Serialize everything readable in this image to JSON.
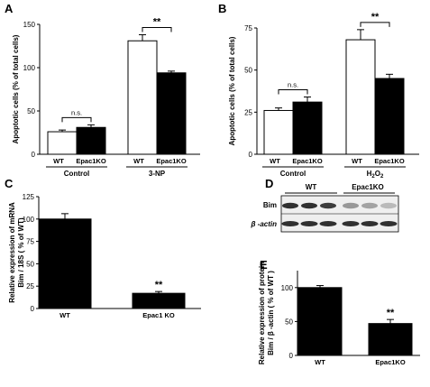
{
  "chart_data": [
    {
      "panel": "A",
      "type": "bar",
      "ylabel": "Apoptotic cells (% of total cells)",
      "ylim": [
        0,
        150
      ],
      "yticks": [
        0,
        50,
        100,
        150
      ],
      "categories": [
        "WT",
        "Epac1KO",
        "WT",
        "Epac1KO"
      ],
      "groups": [
        "Control",
        "3-NP"
      ],
      "values": [
        26,
        31,
        131,
        94
      ],
      "errors": [
        2,
        3,
        7,
        2
      ],
      "fills": [
        "#ffffff",
        "#000000",
        "#ffffff",
        "#000000"
      ],
      "brackets": [
        {
          "from": 0,
          "to": 1,
          "label": "n.s."
        },
        {
          "from": 2,
          "to": 3,
          "label": "**"
        }
      ]
    },
    {
      "panel": "B",
      "type": "bar",
      "ylabel": "Apoptotic cells (% of total cells)",
      "ylim": [
        0,
        75
      ],
      "yticks": [
        0,
        25,
        50,
        75
      ],
      "categories": [
        "WT",
        "Epac1KO",
        "WT",
        "Epac1KO"
      ],
      "groups": [
        "Control",
        "H2O2"
      ],
      "values": [
        26,
        31,
        68,
        45
      ],
      "errors": [
        1.5,
        3,
        6,
        2.5
      ],
      "fills": [
        "#ffffff",
        "#000000",
        "#ffffff",
        "#000000"
      ],
      "brackets": [
        {
          "from": 0,
          "to": 1,
          "label": "n.s."
        },
        {
          "from": 2,
          "to": 3,
          "label": "**"
        }
      ]
    },
    {
      "panel": "C",
      "type": "bar",
      "ylabel": "Relative expression of mRNA Bim / 18S ( % of WT)",
      "ylim": [
        0,
        125
      ],
      "yticks": [
        0,
        25,
        50,
        75,
        100,
        125
      ],
      "categories": [
        "WT",
        "Epac1 KO"
      ],
      "values": [
        100,
        17
      ],
      "errors": [
        6,
        2
      ],
      "fills": [
        "#000000",
        "#000000"
      ],
      "annotations": [
        {
          "index": 1,
          "label": "**"
        }
      ]
    },
    {
      "panel": "E",
      "type": "bar",
      "ylabel": "Relative expression of protein Bim / β -actin ( % of WT )",
      "ylim": [
        0,
        125
      ],
      "yticks": [
        0,
        50,
        100
      ],
      "categories": [
        "WT",
        "Epac1KO"
      ],
      "values": [
        100,
        47
      ],
      "errors": [
        3,
        6
      ],
      "fills": [
        "#000000",
        "#000000"
      ],
      "annotations": [
        {
          "index": 1,
          "label": "**"
        }
      ]
    }
  ],
  "blot": {
    "panel": "D",
    "group_labels": [
      "WT",
      "Epac1KO"
    ],
    "row_labels": [
      "Bim",
      "β -actin"
    ],
    "bim_intensity": [
      0.9,
      0.9,
      0.85,
      0.45,
      0.4,
      0.3
    ],
    "actin_intensity": [
      0.9,
      0.9,
      0.9,
      0.9,
      0.9,
      0.9
    ]
  }
}
